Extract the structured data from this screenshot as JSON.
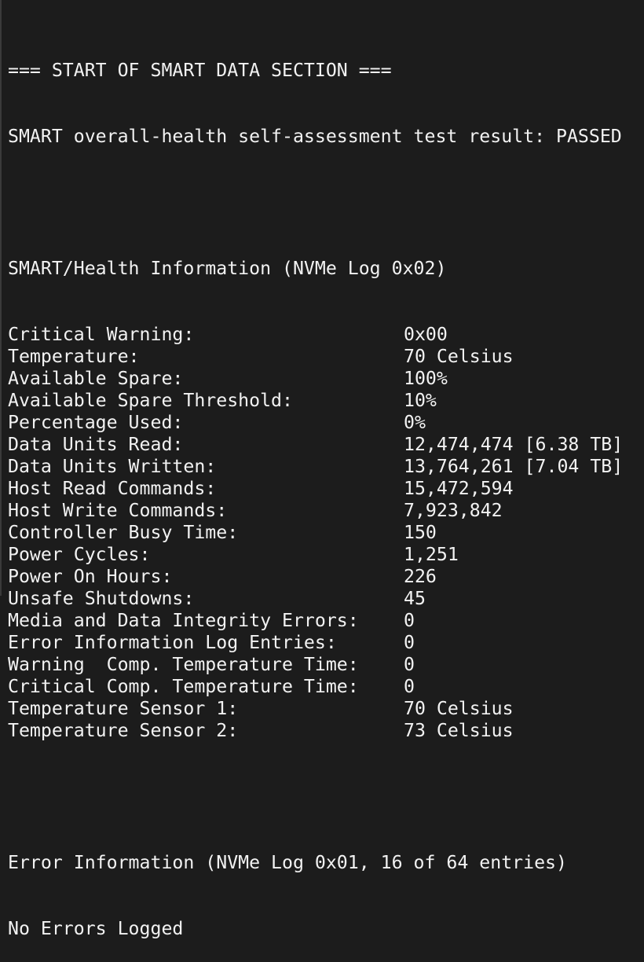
{
  "header": "=== START OF SMART DATA SECTION ===",
  "health_result": "SMART overall-health self-assessment test result: PASSED",
  "smart_title": "SMART/Health Information (NVMe Log 0x02)",
  "rows": [
    {
      "label": "Critical Warning:",
      "value": "0x00"
    },
    {
      "label": "Temperature:",
      "value": "70 Celsius"
    },
    {
      "label": "Available Spare:",
      "value": "100%"
    },
    {
      "label": "Available Spare Threshold:",
      "value": "10%"
    },
    {
      "label": "Percentage Used:",
      "value": "0%"
    },
    {
      "label": "Data Units Read:",
      "value": "12,474,474 [6.38 TB]"
    },
    {
      "label": "Data Units Written:",
      "value": "13,764,261 [7.04 TB]"
    },
    {
      "label": "Host Read Commands:",
      "value": "15,472,594"
    },
    {
      "label": "Host Write Commands:",
      "value": "7,923,842"
    },
    {
      "label": "Controller Busy Time:",
      "value": "150"
    },
    {
      "label": "Power Cycles:",
      "value": "1,251"
    },
    {
      "label": "Power On Hours:",
      "value": "226"
    },
    {
      "label": "Unsafe Shutdowns:",
      "value": "45"
    },
    {
      "label": "Media and Data Integrity Errors:",
      "value": "0"
    },
    {
      "label": "Error Information Log Entries:",
      "value": "0"
    },
    {
      "label": "Warning  Comp. Temperature Time:",
      "value": "0"
    },
    {
      "label": "Critical Comp. Temperature Time:",
      "value": "0"
    },
    {
      "label": "Temperature Sensor 1:",
      "value": "70 Celsius"
    },
    {
      "label": "Temperature Sensor 2:",
      "value": "73 Celsius"
    }
  ],
  "error_title": "Error Information (NVMe Log 0x01, 16 of 64 entries)",
  "error_status": "No Errors Logged"
}
